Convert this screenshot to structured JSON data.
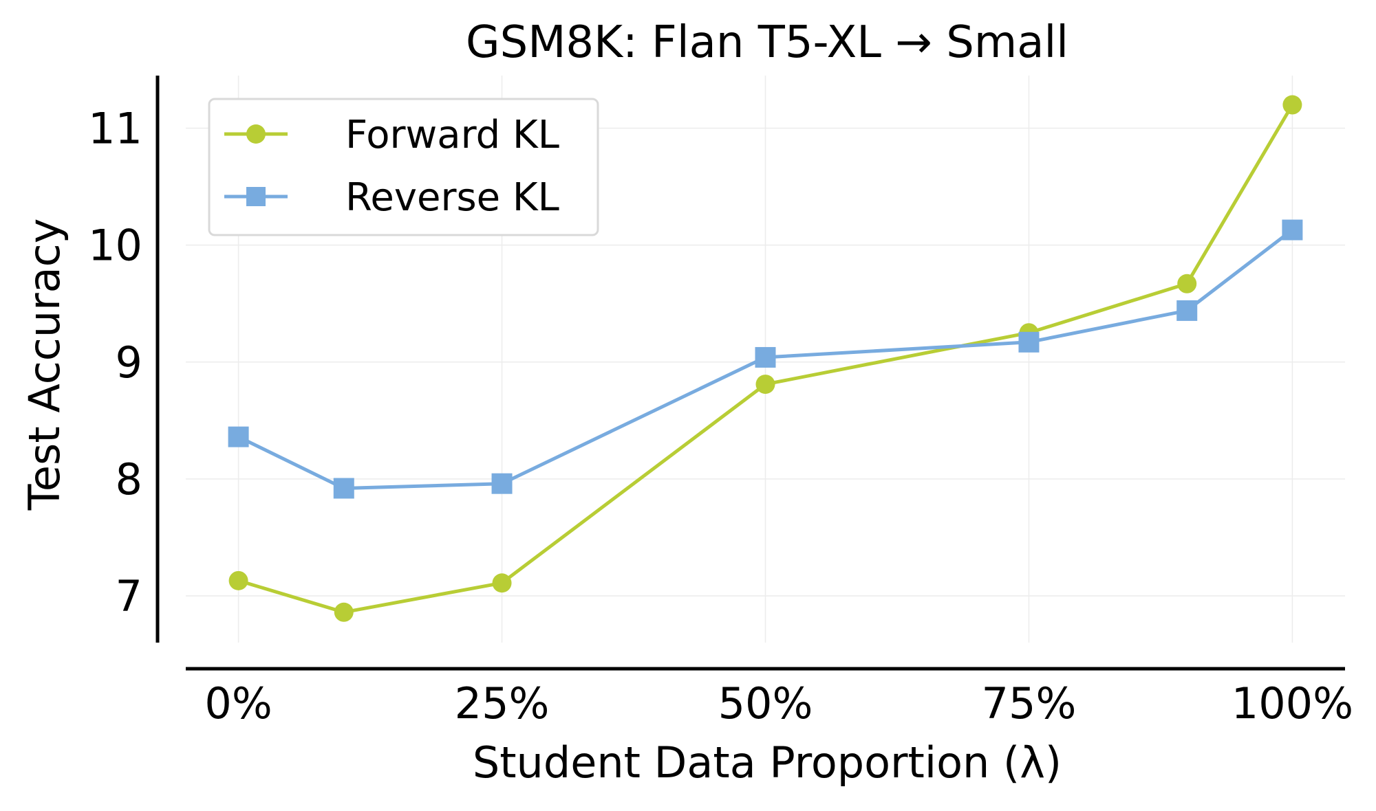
{
  "chart_data": {
    "type": "line",
    "title": "GSM8K: Flan T5-XL → Small",
    "xlabel": "Student Data Proportion (λ)",
    "ylabel": "Test Accuracy",
    "x": [
      0,
      10,
      25,
      50,
      75,
      90,
      100
    ],
    "xlim": [
      -5,
      105
    ],
    "ylim": [
      6.6,
      11.45
    ],
    "xticks": [
      0,
      25,
      50,
      75,
      100
    ],
    "xtick_labels": [
      "0%",
      "25%",
      "50%",
      "75%",
      "100%"
    ],
    "yticks": [
      7,
      8,
      9,
      10,
      11
    ],
    "ytick_labels": [
      "7",
      "8",
      "9",
      "10",
      "11"
    ],
    "grid": true,
    "legend_position": "top-left",
    "series": [
      {
        "name": "Forward KL",
        "marker": "circle",
        "color": "#b8cd35",
        "values": [
          7.13,
          6.86,
          7.11,
          8.81,
          9.25,
          9.67,
          11.2
        ]
      },
      {
        "name": "Reverse KL",
        "marker": "square",
        "color": "#78abdf",
        "values": [
          8.36,
          7.92,
          7.96,
          9.04,
          9.17,
          9.44,
          10.13
        ]
      }
    ]
  }
}
